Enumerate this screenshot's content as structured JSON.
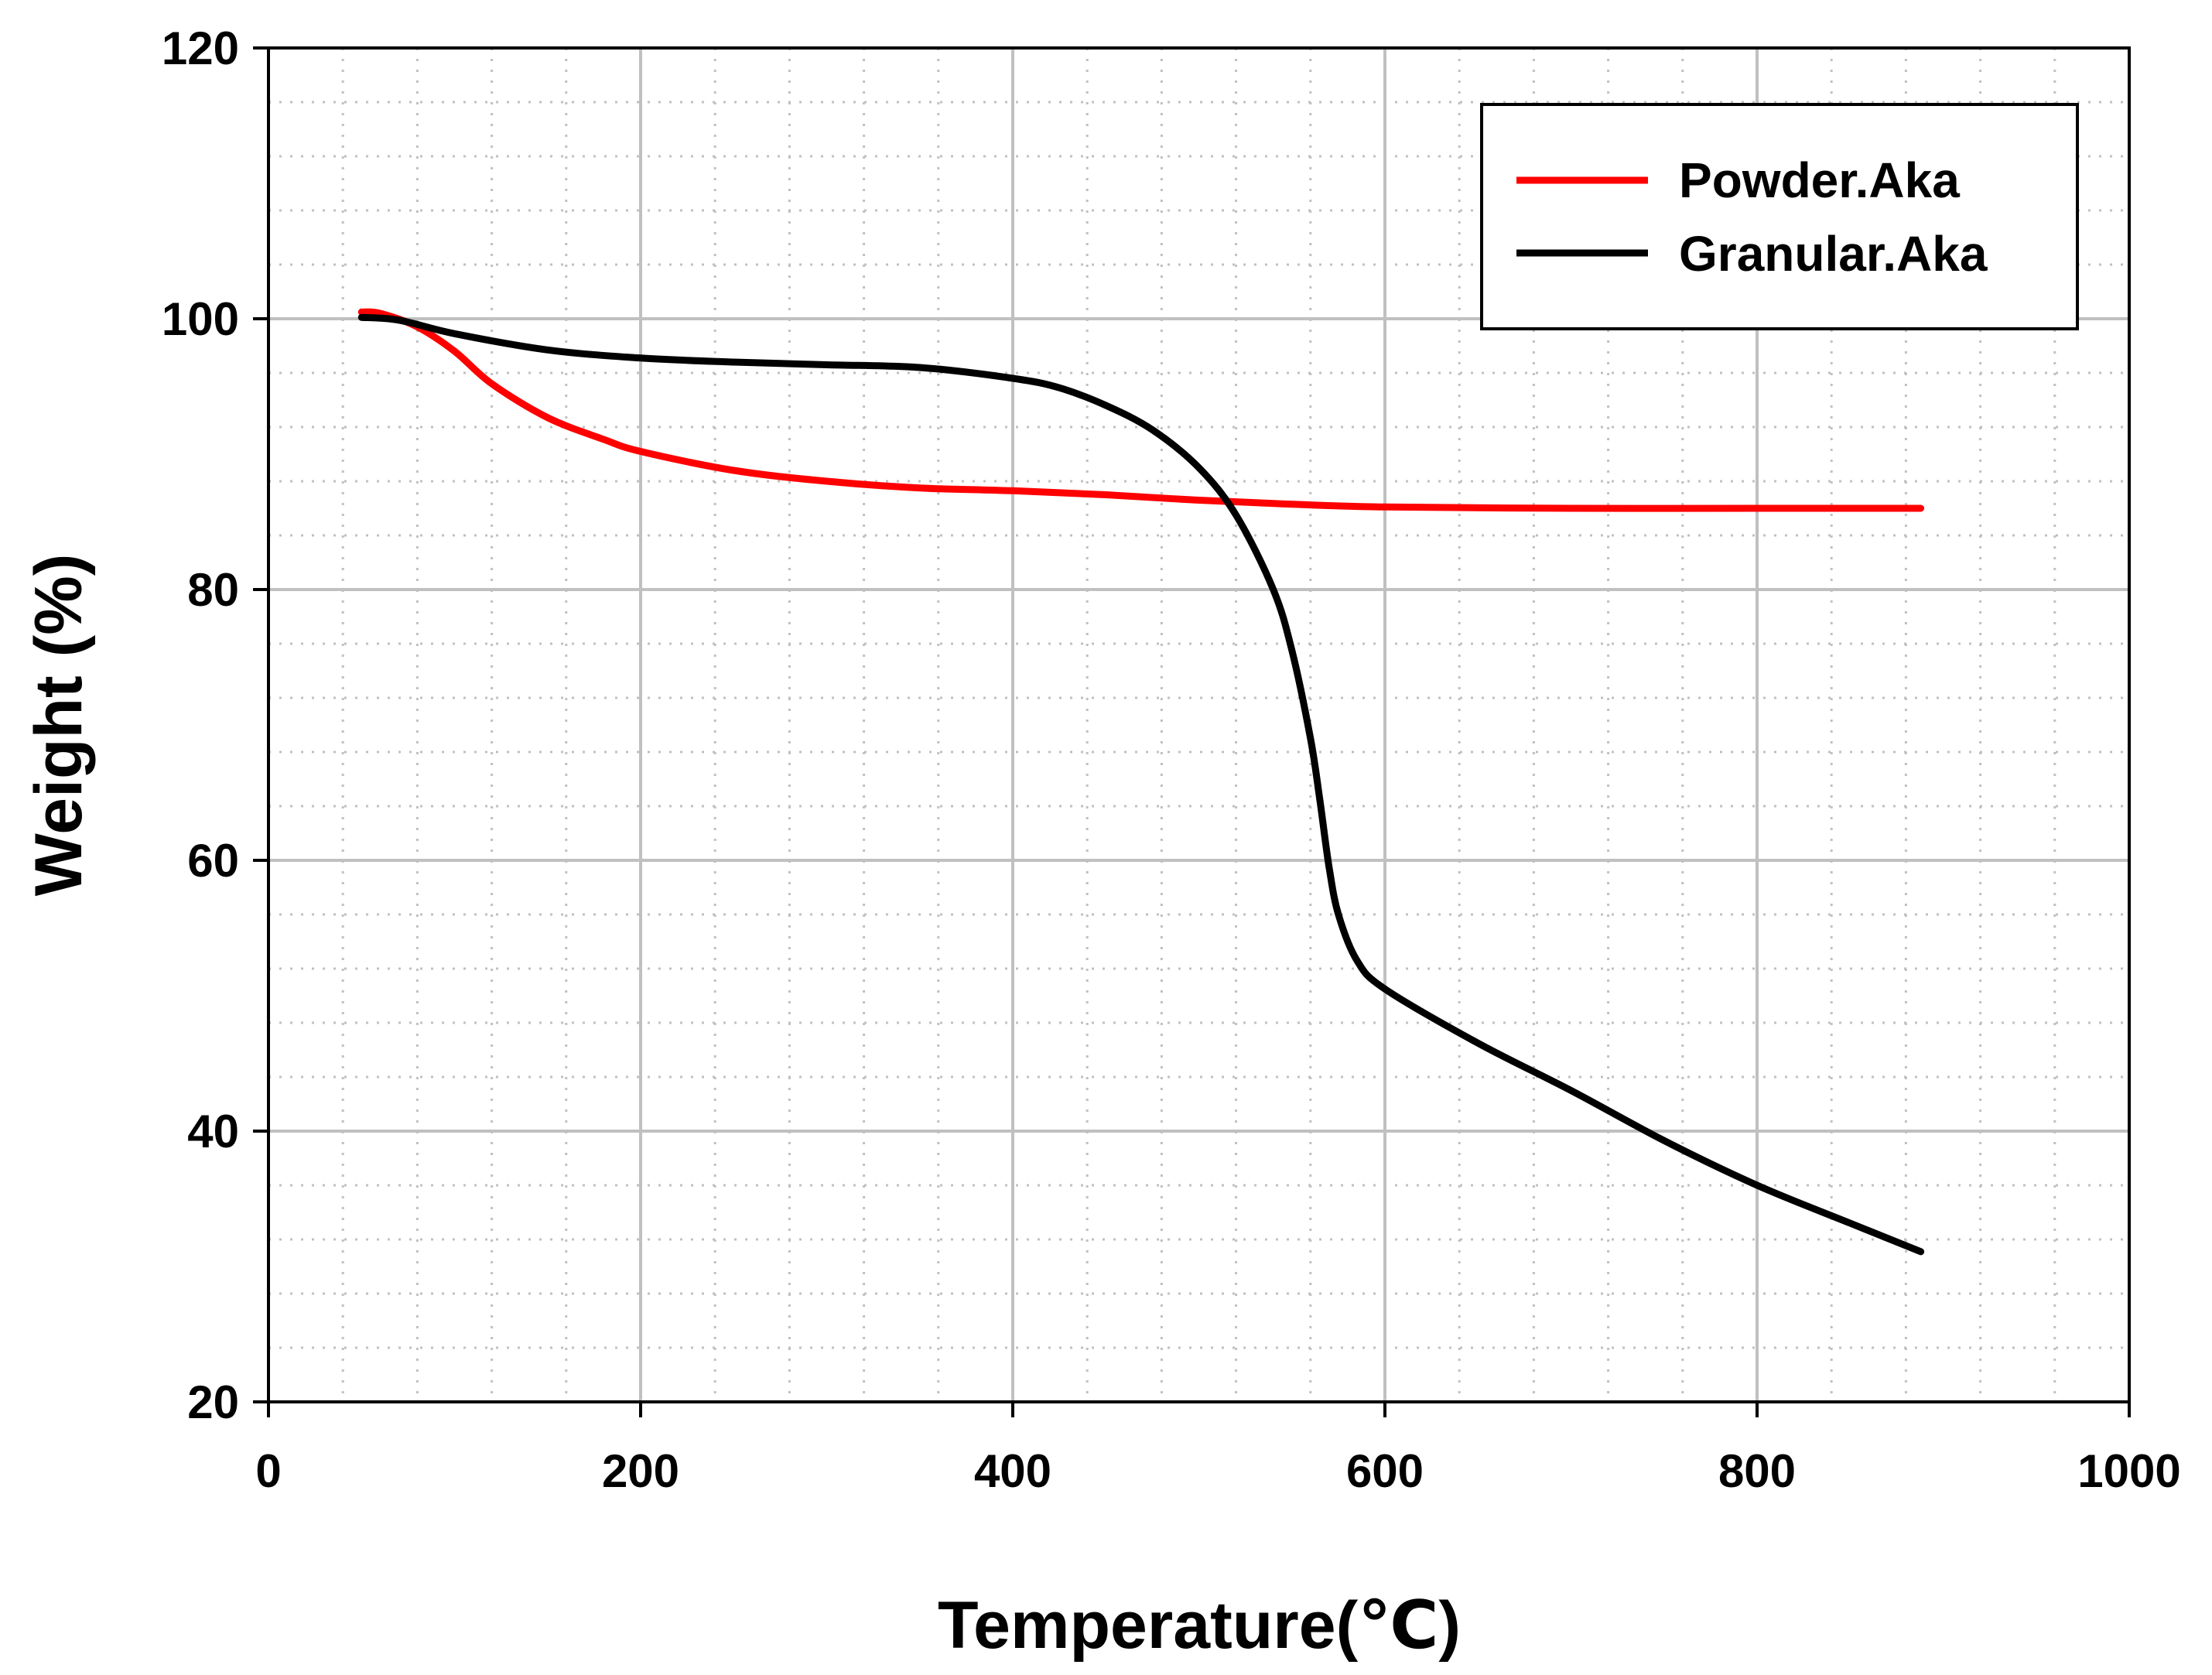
{
  "chart_data": {
    "type": "line",
    "title": "",
    "xlabel": "Temperature(℃)",
    "ylabel": "Weight (%)",
    "xlim": [
      0,
      1000
    ],
    "ylim": [
      20,
      120
    ],
    "xticks": [
      0,
      200,
      400,
      600,
      800,
      1000
    ],
    "yticks": [
      20,
      40,
      60,
      80,
      100,
      120
    ],
    "xtick_labels": [
      "0",
      "200",
      "400",
      "600",
      "800",
      "1000"
    ],
    "ytick_labels": [
      "20",
      "40",
      "60",
      "80",
      "100",
      "120"
    ],
    "grid": true,
    "legend_position": "top-right",
    "colors": {
      "powder": "#ff0000",
      "granular": "#000000",
      "grid_major": "#c0c0c0",
      "grid_minor": "#c0c0c0"
    },
    "series": [
      {
        "name": "Powder.Aka",
        "color": "#ff0000",
        "x": [
          50,
          60,
          80,
          100,
          120,
          150,
          180,
          200,
          250,
          300,
          350,
          400,
          450,
          500,
          550,
          600,
          700,
          800,
          888
        ],
        "y": [
          100.5,
          100.4,
          99.4,
          97.6,
          95.2,
          92.7,
          91.1,
          90.2,
          88.8,
          88.0,
          87.5,
          87.3,
          87.0,
          86.6,
          86.3,
          86.1,
          86.0,
          86.0,
          86.0
        ]
      },
      {
        "name": "Granular.Aka",
        "color": "#000000",
        "x": [
          50,
          70,
          100,
          150,
          200,
          250,
          300,
          350,
          400,
          425,
          450,
          475,
          500,
          520,
          540,
          550,
          560,
          565,
          570,
          575,
          585,
          600,
          650,
          700,
          750,
          800,
          850,
          888
        ],
        "y": [
          100.1,
          99.9,
          98.9,
          97.7,
          97.1,
          96.8,
          96.6,
          96.4,
          95.6,
          94.9,
          93.6,
          91.8,
          89.0,
          85.5,
          80.0,
          75.5,
          69.0,
          64.5,
          59.5,
          56.0,
          52.6,
          50.5,
          46.5,
          43.0,
          39.3,
          36.0,
          33.2,
          31.1
        ]
      }
    ]
  }
}
